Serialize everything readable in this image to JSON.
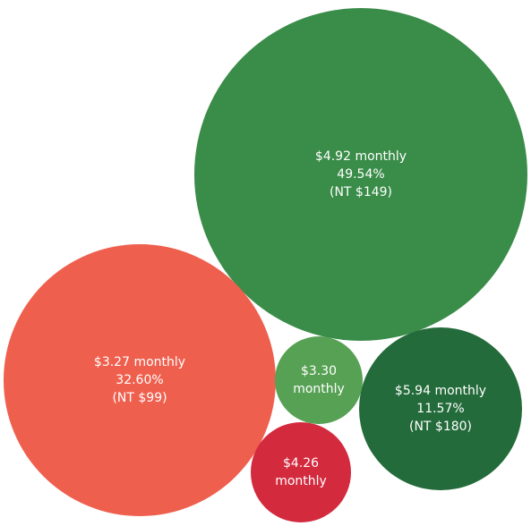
{
  "chart_data": {
    "type": "bubble",
    "title": "",
    "bubbles": [
      {
        "price": "$4.92 monthly",
        "share": "49.54%",
        "local_price": "(NT $149)",
        "share_value": 49.54,
        "color": "#3a8c49"
      },
      {
        "price": "$3.27 monthly",
        "share": "32.60%",
        "local_price": "(NT $99)",
        "share_value": 32.6,
        "color": "#ef5f4e"
      },
      {
        "price": "$5.94 monthly",
        "share": "11.57%",
        "local_price": "(NT $180)",
        "share_value": 11.57,
        "color": "#236b3a"
      },
      {
        "price": "$3.30 monthly",
        "share": "",
        "local_price": "",
        "share_value": null,
        "color": "#57a154"
      },
      {
        "price": "$4.26 monthly",
        "share": "",
        "local_price": "",
        "share_value": null,
        "color": "#d32a3e"
      }
    ]
  }
}
